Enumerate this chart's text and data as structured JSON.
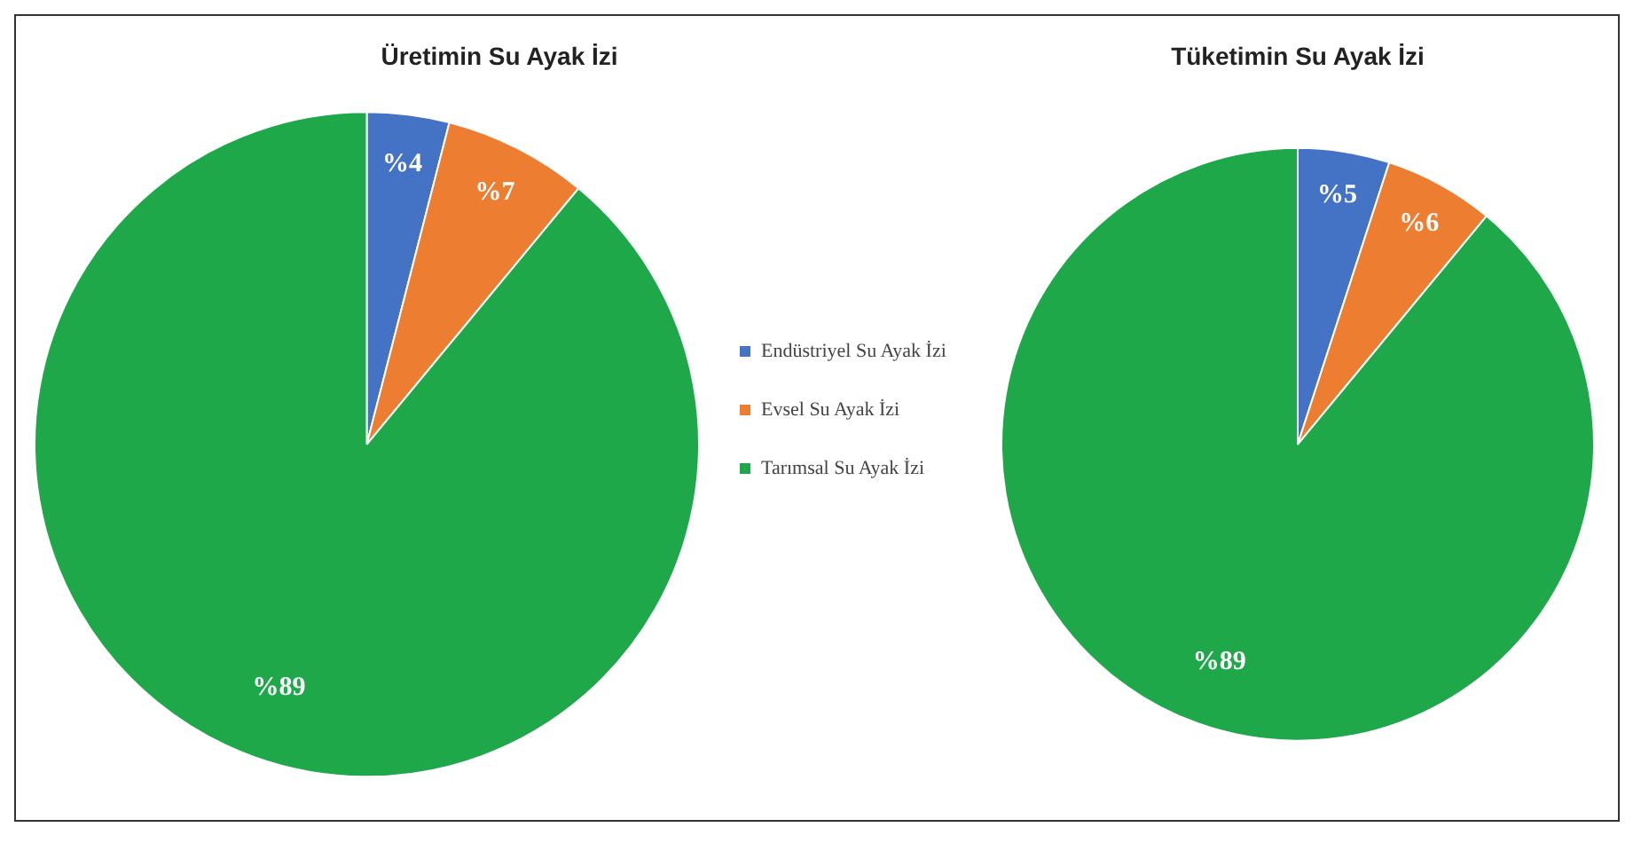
{
  "chart_data": [
    {
      "type": "pie",
      "title": "Üretimin Su Ayak İzi",
      "categories": [
        "Endüstriyel Su Ayak İzi",
        "Evsel Su Ayak İzi",
        "Tarımsal Su Ayak İzi"
      ],
      "values": [
        4,
        7,
        89
      ],
      "colors": [
        "#4472c4",
        "#ed7d31",
        "#1fa84a"
      ],
      "value_labels": [
        "%4",
        "%7",
        "%89"
      ],
      "legend": "right"
    },
    {
      "type": "pie",
      "title": "Tüketimin Su Ayak İzi",
      "categories": [
        null,
        null,
        null
      ],
      "values": [
        5,
        6,
        89
      ],
      "colors": [
        "#4472c4",
        "#ed7d31",
        "#1fa84a"
      ],
      "value_labels": [
        "%5",
        "%6",
        "%89"
      ]
    }
  ]
}
